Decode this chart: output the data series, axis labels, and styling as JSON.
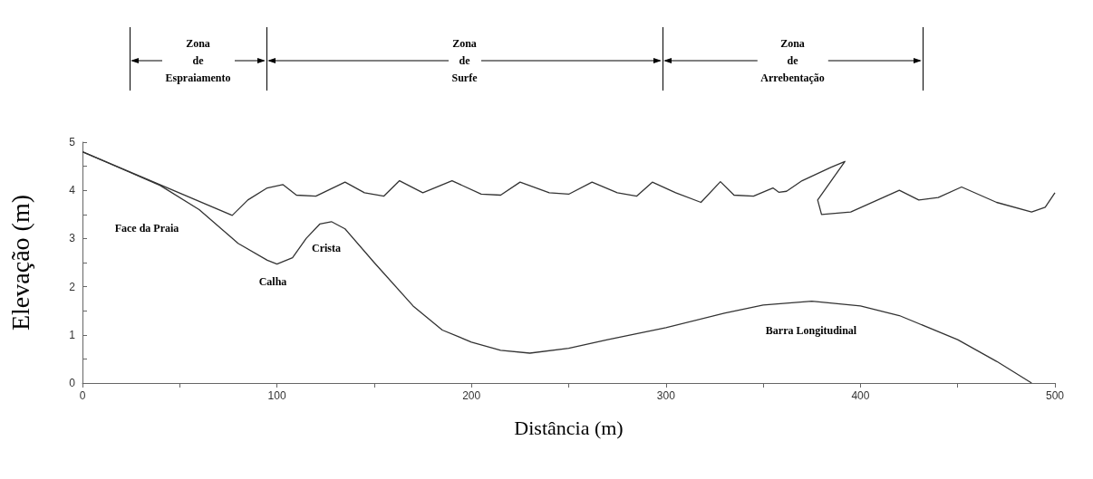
{
  "chart_data": {
    "type": "line",
    "xlabel": "Distância (m)",
    "ylabel": "Elevação (m)",
    "xlim": [
      0,
      500
    ],
    "ylim": [
      0,
      5
    ],
    "xticks": [
      0,
      {
        "value": 50,
        "label": null
      },
      100,
      {
        "value": 150,
        "label": null
      },
      200,
      {
        "value": 250,
        "label": null
      },
      300,
      {
        "value": 350,
        "label": null
      },
      400,
      {
        "value": 450,
        "label": null
      },
      500
    ],
    "yticks": [
      0,
      {
        "value": 0.5,
        "label": null
      },
      1,
      {
        "value": 1.5,
        "label": null
      },
      2,
      {
        "value": 2.5,
        "label": null
      },
      3,
      {
        "value": 3.5,
        "label": null
      },
      4,
      {
        "value": 4.5,
        "label": null
      },
      5
    ],
    "series": [
      {
        "color": "#333333",
        "x": [
          0,
          77,
          85,
          95,
          103,
          110,
          120,
          135,
          145,
          155,
          163,
          175,
          190,
          205,
          215,
          225,
          240,
          250,
          262,
          275,
          285,
          293,
          305,
          318,
          328,
          335,
          345,
          355,
          358,
          362,
          370,
          385,
          392,
          385,
          378,
          380,
          395,
          420,
          430,
          440,
          452,
          470,
          488,
          495,
          500
        ],
        "values": [
          4.8,
          3.48,
          3.8,
          4.05,
          4.12,
          3.9,
          3.88,
          4.17,
          3.95,
          3.88,
          4.2,
          3.95,
          4.2,
          3.92,
          3.9,
          4.17,
          3.95,
          3.92,
          4.17,
          3.95,
          3.88,
          4.17,
          3.95,
          3.75,
          4.18,
          3.9,
          3.88,
          4.05,
          3.96,
          3.98,
          4.2,
          4.48,
          4.6,
          4.2,
          3.8,
          3.5,
          3.55,
          4.0,
          3.8,
          3.85,
          4.07,
          3.75,
          3.55,
          3.65,
          3.95
        ]
      },
      {
        "color": "#333333",
        "x": [
          0,
          20,
          40,
          60,
          80,
          95,
          100,
          108,
          115,
          122,
          128,
          135,
          150,
          170,
          185,
          200,
          215,
          230,
          250,
          270,
          300,
          330,
          350,
          375,
          400,
          420,
          450,
          470,
          488
        ],
        "values": [
          4.8,
          4.45,
          4.1,
          3.6,
          2.9,
          2.55,
          2.47,
          2.6,
          3.0,
          3.3,
          3.35,
          3.2,
          2.5,
          1.6,
          1.1,
          0.85,
          0.68,
          0.62,
          0.72,
          0.9,
          1.15,
          1.45,
          1.62,
          1.7,
          1.6,
          1.4,
          0.9,
          0.45,
          0
        ]
      }
    ],
    "annotations": [
      "Zona de Espraiamento",
      "Zona de Surfe",
      "Zona de Arrebentação",
      "Face da Praia",
      "Calha",
      "Crista",
      "Barra Longitudinal"
    ]
  }
}
